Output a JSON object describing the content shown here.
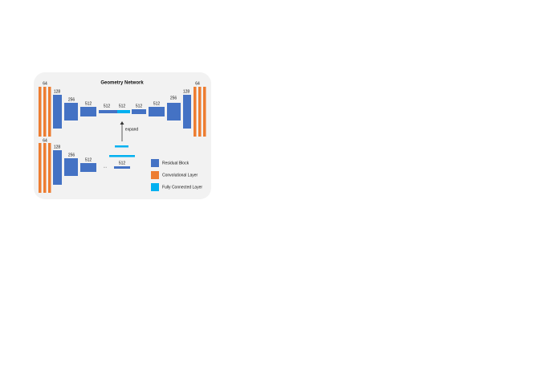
{
  "title": "Geometry Network",
  "top_row": [
    "64",
    "128",
    "256",
    "512",
    "512",
    "512",
    "512",
    "512",
    "256",
    "128",
    "64"
  ],
  "expand_label": "expand",
  "bottom_row": [
    "64",
    "128",
    "256",
    "512",
    "...",
    "512"
  ],
  "legend": [
    "Residual Block",
    "Convolutional Layer",
    "Fully Connected Layer"
  ]
}
